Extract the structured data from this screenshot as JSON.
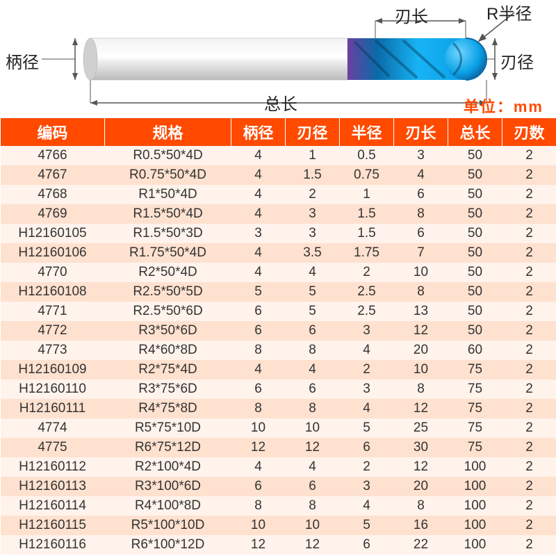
{
  "diagram": {
    "labels": {
      "shank_dia": "柄径",
      "blade_len": "刃长",
      "radius": "R半径",
      "blade_dia": "刃径",
      "total_len": "总长"
    },
    "unit_label": "单位：mm",
    "colors": {
      "shank": "#d8d8d8",
      "shank_dark": "#bcbcbc",
      "tip_blue": "#0aa0e6",
      "tip_dark": "#0b6aa8",
      "tip_purple": "#7a3fa0",
      "arrow": "#555555"
    }
  },
  "table": {
    "header_bg": "#ff4a00",
    "header_fg": "#ffffff",
    "row_odd_bg": "#fff3ec",
    "row_even_bg": "#ffe1cf",
    "columns": [
      "编码",
      "规格",
      "柄径",
      "刃径",
      "半径",
      "刃长",
      "总长",
      "刃数"
    ],
    "rows": [
      [
        "4766",
        "R0.5*50*4D",
        "4",
        "1",
        "0.5",
        "3",
        "50",
        "2"
      ],
      [
        "4767",
        "R0.75*50*4D",
        "4",
        "1.5",
        "0.75",
        "4",
        "50",
        "2"
      ],
      [
        "4768",
        "R1*50*4D",
        "4",
        "2",
        "1",
        "6",
        "50",
        "2"
      ],
      [
        "4769",
        "R1.5*50*4D",
        "4",
        "3",
        "1.5",
        "8",
        "50",
        "2"
      ],
      [
        "H12160105",
        "R1.5*50*3D",
        "3",
        "3",
        "1.5",
        "6",
        "50",
        "2"
      ],
      [
        "H12160106",
        "R1.75*50*4D",
        "4",
        "3.5",
        "1.75",
        "7",
        "50",
        "2"
      ],
      [
        "4770",
        "R2*50*4D",
        "4",
        "4",
        "2",
        "10",
        "50",
        "2"
      ],
      [
        "H12160108",
        "R2.5*50*5D",
        "5",
        "5",
        "2.5",
        "8",
        "50",
        "2"
      ],
      [
        "4771",
        "R2.5*50*6D",
        "6",
        "5",
        "2.5",
        "13",
        "50",
        "2"
      ],
      [
        "4772",
        "R3*50*6D",
        "6",
        "6",
        "3",
        "12",
        "50",
        "2"
      ],
      [
        "4773",
        "R4*60*8D",
        "8",
        "8",
        "4",
        "20",
        "60",
        "2"
      ],
      [
        "H12160109",
        "R2*75*4D",
        "4",
        "4",
        "2",
        "10",
        "75",
        "2"
      ],
      [
        "H12160110",
        "R3*75*6D",
        "6",
        "6",
        "3",
        "8",
        "75",
        "2"
      ],
      [
        "H12160111",
        "R4*75*8D",
        "8",
        "8",
        "4",
        "12",
        "75",
        "2"
      ],
      [
        "4774",
        "R5*75*10D",
        "10",
        "10",
        "5",
        "25",
        "75",
        "2"
      ],
      [
        "4775",
        "R6*75*12D",
        "12",
        "12",
        "6",
        "30",
        "75",
        "2"
      ],
      [
        "H12160112",
        "R2*100*4D",
        "4",
        "4",
        "2",
        "12",
        "100",
        "2"
      ],
      [
        "H12160113",
        "R3*100*6D",
        "6",
        "6",
        "3",
        "20",
        "100",
        "2"
      ],
      [
        "H12160114",
        "R4*100*8D",
        "8",
        "8",
        "4",
        "8",
        "100",
        "2"
      ],
      [
        "H12160115",
        "R5*100*10D",
        "10",
        "10",
        "5",
        "16",
        "100",
        "2"
      ],
      [
        "H12160116",
        "R6*100*12D",
        "12",
        "12",
        "6",
        "22",
        "100",
        "2"
      ]
    ]
  }
}
